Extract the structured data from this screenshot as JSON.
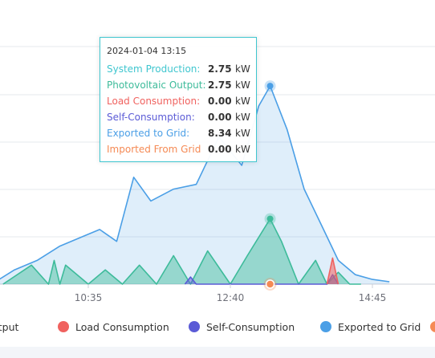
{
  "chart_data": {
    "type": "area",
    "x_axis_labels": [
      "10:35",
      "12:40",
      "14:45"
    ],
    "series": [
      {
        "name": "System Production",
        "color": "#3fc6cf"
      },
      {
        "name": "Photovoltaic Output",
        "color": "#3dbb9a",
        "x": [
          "09:20",
          "09:45",
          "10:00",
          "10:05",
          "10:10",
          "10:15",
          "10:35",
          "10:50",
          "11:05",
          "11:20",
          "11:35",
          "11:50",
          "12:05",
          "12:20",
          "12:40",
          "12:55",
          "13:15",
          "13:25",
          "13:40",
          "13:55",
          "14:05",
          "14:15",
          "14:25",
          "14:35"
        ],
        "y": [
          0,
          0.8,
          0,
          1.0,
          0,
          0.8,
          0,
          0.6,
          0,
          0.8,
          0,
          1.2,
          0,
          1.4,
          0,
          1.2,
          2.75,
          1.8,
          0,
          1.0,
          0,
          0.5,
          0,
          0
        ]
      },
      {
        "name": "Load Consumption",
        "color": "#f0625f",
        "x": [
          "14:05",
          "14:10",
          "14:15"
        ],
        "y": [
          0,
          1.1,
          0
        ]
      },
      {
        "name": "Self-Consumption",
        "color": "#5b5bd6",
        "x": [
          "12:00",
          "12:05",
          "12:10",
          "14:05",
          "14:10",
          "14:15"
        ],
        "y": [
          0,
          0.3,
          0,
          0,
          0.4,
          0
        ]
      },
      {
        "name": "Exported to Grid",
        "color": "#4b9fe6",
        "x": [
          "09:10",
          "09:30",
          "09:50",
          "10:10",
          "10:30",
          "10:45",
          "11:00",
          "11:15",
          "11:30",
          "11:50",
          "12:10",
          "12:30",
          "12:50",
          "13:05",
          "13:15",
          "13:30",
          "13:45",
          "14:00",
          "14:15",
          "14:30",
          "14:45",
          "15:00"
        ],
        "y": [
          0,
          0.6,
          1.0,
          1.6,
          2.0,
          2.3,
          1.8,
          4.5,
          3.5,
          4.0,
          4.2,
          6.2,
          5.0,
          7.5,
          8.34,
          6.5,
          4.0,
          2.5,
          1.0,
          0.4,
          0.2,
          0.1
        ]
      },
      {
        "name": "Imported From Grid",
        "color": "#f58a55"
      }
    ],
    "ylim": [
      0,
      10
    ],
    "tooltip": {
      "time": "2024-01-04 13:15",
      "rows": [
        {
          "name": "System Production:",
          "value": "2.75",
          "unit": "kW",
          "color": "#3fc6cf"
        },
        {
          "name": "Photovoltaic Output:",
          "value": "2.75",
          "unit": "kW",
          "color": "#3dbb9a"
        },
        {
          "name": "Load Consumption:",
          "value": "0.00",
          "unit": "kW",
          "color": "#f0625f"
        },
        {
          "name": "Self-Consumption:",
          "value": "0.00",
          "unit": "kW",
          "color": "#5b5bd6"
        },
        {
          "name": "Exported to Grid:",
          "value": "8.34",
          "unit": "kW",
          "color": "#4b9fe6"
        },
        {
          "name": "Imported From Grid",
          "value": "0.00",
          "unit": "kW",
          "color": "#f58a55"
        }
      ]
    },
    "legend": [
      {
        "label": "Output",
        "color": "#3dbb9a"
      },
      {
        "label": "Load Consumption",
        "color": "#f0625f"
      },
      {
        "label": "Self-Consumption",
        "color": "#5b5bd6"
      },
      {
        "label": "Exported to Grid",
        "color": "#4b9fe6"
      },
      {
        "label": "",
        "color": "#f58a55"
      }
    ]
  }
}
